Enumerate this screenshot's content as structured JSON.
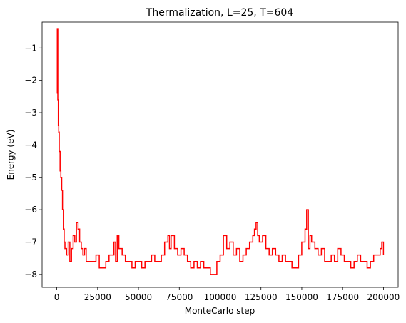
{
  "chart_data": {
    "type": "line",
    "title": "Thermalization, L=25, T=604",
    "xlabel": "MonteCarlo step",
    "ylabel": "Energy (eV)",
    "xlim": [
      -9000,
      209000
    ],
    "ylim": [
      -8.4,
      -0.2
    ],
    "xticks": [
      0,
      25000,
      50000,
      75000,
      100000,
      125000,
      150000,
      175000,
      200000
    ],
    "xtick_labels": [
      "0",
      "25000",
      "50000",
      "75000",
      "100000",
      "125000",
      "150000",
      "175000",
      "200000"
    ],
    "yticks": [
      -1,
      -2,
      -3,
      -4,
      -5,
      -6,
      -7,
      -8
    ],
    "ytick_labels": [
      "−1",
      "−2",
      "−3",
      "−4",
      "−5",
      "−6",
      "−7",
      "−8"
    ],
    "grid": false,
    "series": [
      {
        "color": "#ff0000",
        "x": [
          0,
          300,
          600,
          900,
          1200,
          1500,
          2000,
          2500,
          3000,
          3500,
          4000,
          4500,
          5000,
          5500,
          6000,
          7000,
          8000,
          9000,
          10000,
          11000,
          12000,
          13000,
          14000,
          15000,
          16000,
          17000,
          18000,
          19000,
          20000,
          22000,
          24000,
          26000,
          27000,
          28000,
          30000,
          32000,
          34000,
          35000,
          36000,
          37000,
          38000,
          40000,
          42000,
          44000,
          46000,
          48000,
          50000,
          52000,
          54000,
          56000,
          58000,
          60000,
          62000,
          64000,
          66000,
          68000,
          69000,
          70000,
          72000,
          74000,
          76000,
          78000,
          80000,
          82000,
          84000,
          86000,
          88000,
          90000,
          92000,
          94000,
          96000,
          98000,
          100000,
          102000,
          104000,
          106000,
          108000,
          110000,
          112000,
          114000,
          116000,
          118000,
          120000,
          121000,
          122000,
          123000,
          124000,
          126000,
          128000,
          130000,
          132000,
          134000,
          136000,
          138000,
          140000,
          142000,
          144000,
          146000,
          148000,
          150000,
          152000,
          153000,
          154000,
          155000,
          156000,
          158000,
          160000,
          162000,
          164000,
          166000,
          168000,
          170000,
          172000,
          174000,
          176000,
          178000,
          180000,
          182000,
          184000,
          186000,
          188000,
          190000,
          192000,
          194000,
          196000,
          198000,
          199000,
          200000
        ],
        "y": [
          -2.4,
          -0.4,
          -2.6,
          -3.4,
          -3.6,
          -4.2,
          -4.8,
          -5.0,
          -5.4,
          -6.0,
          -6.6,
          -7.0,
          -7.2,
          -7.2,
          -7.4,
          -7.0,
          -7.6,
          -7.2,
          -6.8,
          -7.0,
          -6.4,
          -6.6,
          -7.0,
          -7.2,
          -7.4,
          -7.2,
          -7.6,
          -7.6,
          -7.6,
          -7.6,
          -7.4,
          -7.8,
          -7.8,
          -7.8,
          -7.6,
          -7.4,
          -7.4,
          -7.0,
          -7.6,
          -6.8,
          -7.2,
          -7.4,
          -7.6,
          -7.6,
          -7.8,
          -7.6,
          -7.6,
          -7.8,
          -7.6,
          -7.6,
          -7.4,
          -7.6,
          -7.6,
          -7.4,
          -7.0,
          -6.8,
          -7.2,
          -6.8,
          -7.2,
          -7.4,
          -7.2,
          -7.4,
          -7.6,
          -7.8,
          -7.6,
          -7.8,
          -7.6,
          -7.8,
          -7.8,
          -8.0,
          -8.0,
          -7.6,
          -7.4,
          -6.8,
          -7.2,
          -7.0,
          -7.4,
          -7.2,
          -7.6,
          -7.4,
          -7.2,
          -7.0,
          -6.8,
          -6.6,
          -6.4,
          -6.8,
          -7.0,
          -6.8,
          -7.2,
          -7.4,
          -7.2,
          -7.4,
          -7.6,
          -7.4,
          -7.6,
          -7.6,
          -7.8,
          -7.8,
          -7.4,
          -7.0,
          -6.6,
          -6.0,
          -7.2,
          -6.8,
          -7.0,
          -7.2,
          -7.4,
          -7.2,
          -7.6,
          -7.6,
          -7.4,
          -7.6,
          -7.2,
          -7.4,
          -7.6,
          -7.6,
          -7.8,
          -7.6,
          -7.4,
          -7.6,
          -7.6,
          -7.8,
          -7.6,
          -7.4,
          -7.4,
          -7.2,
          -7.0,
          -7.4
        ]
      }
    ]
  }
}
